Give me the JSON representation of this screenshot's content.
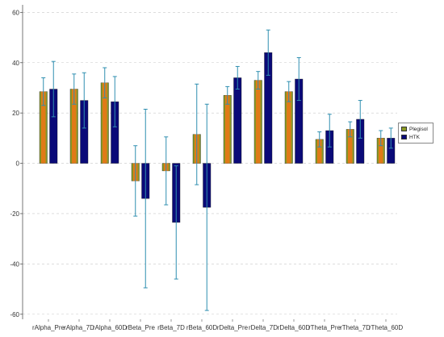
{
  "chart_data": {
    "type": "bar",
    "categories": [
      "rAlpha_Pre",
      "rAlpha_7D",
      "rAlpha_60D",
      "rBeta_Pre",
      "rBeta_7D",
      "rBeta_60D",
      "rDelta_Pre",
      "rDelta_7D",
      "rDelta_60D",
      "rTheta_Pre",
      "rTheta_7D",
      "rTheta_60D"
    ],
    "series": [
      {
        "name": "Plegisol",
        "color": "#8a9a24",
        "color_negative": "#e07a17",
        "values": [
          28.5,
          29.5,
          32,
          -7,
          -3,
          11.5,
          27,
          33,
          28.5,
          9.5,
          13.5,
          10
        ],
        "error": [
          5.5,
          6,
          6,
          14,
          13.5,
          20,
          3.5,
          3.5,
          4,
          3,
          3,
          3
        ]
      },
      {
        "name": "HTK",
        "color": "#0a0a78",
        "values": [
          29.5,
          25,
          24.5,
          -14,
          -23.5,
          -17.5,
          34,
          44,
          33.5,
          13,
          17.5,
          10
        ],
        "error": [
          11,
          11,
          10,
          35.5,
          22.5,
          41,
          4.5,
          9,
          8.5,
          6.5,
          7.5,
          4
        ]
      }
    ],
    "ylim": [
      -62,
      63
    ],
    "yticks": [
      "60",
      "40",
      "20",
      "0",
      "-20",
      "-40",
      "-60"
    ],
    "grid": true,
    "legend": "right",
    "error_bar_color": "#2f8fb0"
  }
}
